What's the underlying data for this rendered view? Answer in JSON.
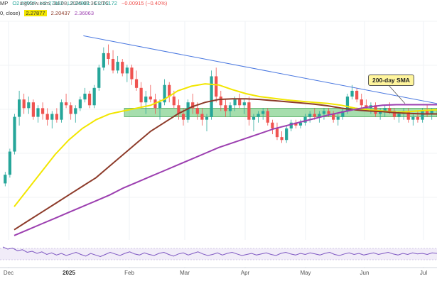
{
  "header": {
    "title_fragment": "ingView.com, Jul 08, 2025 07:36 UTC",
    "symbol_fragment": "MP",
    "open": "O2.27027",
    "high": "H2.27362",
    "low": "L2.24881",
    "close": "C2.26172",
    "change": "−0.00915 (−0.40%)",
    "sma_line_label": "0, close)",
    "sma_value_a": "2.27877",
    "sma_value_b": "2.20437",
    "sma_value_c": "2.36063"
  },
  "annotation": {
    "text": "200-day SMA"
  },
  "colors": {
    "up": "#26a69a",
    "down": "#ef5350",
    "sma_yellow": "#f2e600",
    "sma_brown": "#8d3b2a",
    "sma_purple": "#9c3fb0",
    "trendline_blue": "#4a78e0",
    "support_zone": "#5cc36a",
    "rsi_line": "#7e57c2"
  },
  "chart_data": {
    "type": "candlestick",
    "x_labels": [
      "Dec",
      "2025",
      "Feb",
      "Mar",
      "Apr",
      "May",
      "Jun",
      "Jul"
    ],
    "ohlc": [
      [
        1.0,
        1.2,
        0.95,
        1.15
      ],
      [
        1.15,
        1.6,
        1.1,
        1.55
      ],
      [
        1.55,
        2.2,
        1.5,
        2.15
      ],
      [
        2.15,
        2.6,
        2.0,
        2.45
      ],
      [
        2.45,
        2.55,
        2.2,
        2.3
      ],
      [
        2.3,
        2.5,
        2.2,
        2.4
      ],
      [
        2.4,
        2.45,
        2.1,
        2.15
      ],
      [
        2.15,
        2.35,
        2.05,
        2.3
      ],
      [
        2.3,
        2.4,
        2.1,
        2.2
      ],
      [
        2.2,
        2.3,
        2.0,
        2.1
      ],
      [
        2.1,
        2.25,
        1.95,
        2.2
      ],
      [
        2.2,
        2.3,
        2.05,
        2.1
      ],
      [
        2.1,
        2.45,
        2.05,
        2.4
      ],
      [
        2.4,
        2.55,
        2.3,
        2.35
      ],
      [
        2.35,
        2.4,
        2.1,
        2.2
      ],
      [
        2.2,
        2.35,
        2.05,
        2.3
      ],
      [
        2.3,
        2.5,
        2.25,
        2.45
      ],
      [
        2.45,
        2.65,
        2.4,
        2.55
      ],
      [
        2.55,
        2.6,
        2.3,
        2.35
      ],
      [
        2.35,
        2.7,
        2.3,
        2.65
      ],
      [
        2.65,
        3.05,
        2.6,
        3.0
      ],
      [
        3.0,
        3.35,
        2.95,
        3.25
      ],
      [
        3.25,
        3.4,
        3.05,
        3.15
      ],
      [
        3.15,
        3.3,
        2.9,
        2.95
      ],
      [
        2.95,
        3.2,
        2.9,
        3.1
      ],
      [
        3.1,
        3.15,
        2.85,
        2.9
      ],
      [
        2.9,
        3.05,
        2.75,
        3.0
      ],
      [
        3.0,
        3.05,
        2.7,
        2.8
      ],
      [
        2.8,
        2.95,
        2.6,
        2.65
      ],
      [
        2.65,
        2.75,
        2.3,
        2.4
      ],
      [
        2.4,
        2.6,
        2.2,
        2.5
      ],
      [
        2.5,
        2.7,
        2.4,
        2.45
      ],
      [
        2.45,
        2.55,
        2.2,
        2.3
      ],
      [
        2.3,
        2.45,
        2.1,
        2.4
      ],
      [
        2.4,
        2.8,
        2.35,
        2.7
      ],
      [
        2.7,
        2.75,
        2.4,
        2.5
      ],
      [
        2.5,
        2.6,
        2.3,
        2.35
      ],
      [
        2.35,
        2.45,
        2.1,
        2.2
      ],
      [
        2.2,
        2.3,
        2.0,
        2.1
      ],
      [
        2.1,
        2.45,
        2.05,
        2.4
      ],
      [
        2.4,
        2.55,
        2.2,
        2.3
      ],
      [
        2.3,
        2.4,
        2.1,
        2.2
      ],
      [
        2.2,
        2.3,
        2.0,
        2.1
      ],
      [
        2.1,
        2.2,
        1.9,
        2.15
      ],
      [
        2.15,
        2.95,
        2.1,
        2.85
      ],
      [
        2.85,
        3.0,
        2.4,
        2.5
      ],
      [
        2.5,
        2.6,
        2.25,
        2.35
      ],
      [
        2.35,
        2.45,
        2.15,
        2.25
      ],
      [
        2.25,
        2.4,
        2.15,
        2.35
      ],
      [
        2.35,
        2.5,
        2.25,
        2.45
      ],
      [
        2.45,
        2.55,
        2.3,
        2.35
      ],
      [
        2.35,
        2.45,
        2.2,
        2.4
      ],
      [
        2.4,
        2.5,
        2.0,
        2.1
      ],
      [
        2.1,
        2.2,
        1.9,
        2.15
      ],
      [
        2.15,
        2.25,
        2.05,
        2.2
      ],
      [
        2.2,
        2.3,
        2.1,
        2.25
      ],
      [
        2.25,
        2.3,
        2.0,
        2.05
      ],
      [
        2.05,
        2.1,
        1.85,
        1.95
      ],
      [
        1.95,
        2.05,
        1.75,
        1.8
      ],
      [
        1.8,
        1.9,
        1.7,
        1.75
      ],
      [
        1.75,
        2.0,
        1.7,
        1.95
      ],
      [
        1.95,
        2.1,
        1.9,
        2.05
      ],
      [
        2.05,
        2.1,
        1.95,
        2.0
      ],
      [
        2.0,
        2.1,
        1.95,
        2.05
      ],
      [
        2.05,
        2.2,
        2.0,
        2.15
      ],
      [
        2.15,
        2.25,
        2.05,
        2.2
      ],
      [
        2.2,
        2.3,
        2.1,
        2.15
      ],
      [
        2.15,
        2.25,
        2.05,
        2.2
      ],
      [
        2.2,
        2.3,
        2.1,
        2.25
      ],
      [
        2.25,
        2.3,
        2.15,
        2.2
      ],
      [
        2.2,
        2.25,
        2.05,
        2.1
      ],
      [
        2.1,
        2.2,
        2.0,
        2.15
      ],
      [
        2.15,
        2.3,
        2.1,
        2.25
      ],
      [
        2.25,
        2.55,
        2.2,
        2.5
      ],
      [
        2.5,
        2.7,
        2.45,
        2.6
      ],
      [
        2.6,
        2.65,
        2.4,
        2.45
      ],
      [
        2.45,
        2.55,
        2.3,
        2.35
      ],
      [
        2.35,
        2.45,
        2.25,
        2.3
      ],
      [
        2.3,
        2.4,
        2.2,
        2.35
      ],
      [
        2.35,
        2.4,
        2.15,
        2.2
      ],
      [
        2.2,
        2.3,
        2.1,
        2.25
      ],
      [
        2.25,
        2.35,
        2.15,
        2.3
      ],
      [
        2.3,
        2.4,
        2.2,
        2.25
      ],
      [
        2.25,
        2.3,
        2.1,
        2.15
      ],
      [
        2.15,
        2.25,
        2.05,
        2.2
      ],
      [
        2.2,
        2.3,
        2.1,
        2.25
      ],
      [
        2.25,
        2.3,
        2.05,
        2.1
      ],
      [
        2.1,
        2.2,
        2.0,
        2.15
      ],
      [
        2.15,
        2.25,
        2.05,
        2.1
      ],
      [
        2.1,
        2.3,
        2.05,
        2.25
      ],
      [
        2.25,
        2.35,
        2.15,
        2.2
      ],
      [
        2.2,
        2.3,
        2.1,
        2.27
      ]
    ],
    "series": [
      {
        "values": [
          0.6,
          0.9,
          1.2,
          1.5,
          1.75,
          1.95,
          2.1,
          2.2,
          2.25,
          2.3,
          2.35,
          2.45,
          2.6,
          2.68,
          2.72,
          2.7,
          2.62,
          2.55,
          2.5,
          2.47,
          2.44,
          2.42,
          2.4,
          2.38,
          2.35,
          2.3,
          2.27,
          2.25,
          2.23,
          2.24,
          2.26,
          2.27
        ]
      },
      {
        "values": [
          0.2,
          0.35,
          0.5,
          0.65,
          0.8,
          0.95,
          1.1,
          1.3,
          1.5,
          1.7,
          1.9,
          2.05,
          2.2,
          2.32,
          2.4,
          2.45,
          2.46,
          2.46,
          2.45,
          2.43,
          2.41,
          2.39,
          2.37,
          2.34,
          2.3,
          2.27,
          2.25,
          2.24,
          2.22,
          2.21,
          2.2,
          2.2
        ]
      },
      {
        "values": [
          0.1,
          0.2,
          0.3,
          0.4,
          0.5,
          0.6,
          0.7,
          0.8,
          0.92,
          1.02,
          1.12,
          1.22,
          1.32,
          1.42,
          1.52,
          1.62,
          1.7,
          1.78,
          1.86,
          1.94,
          2.0,
          2.06,
          2.12,
          2.18,
          2.23,
          2.28,
          2.32,
          2.35,
          2.36,
          2.36,
          2.36,
          2.36
        ]
      }
    ],
    "support_zone": [
      2.15,
      2.3
    ],
    "descending_trendline": {
      "from": [
        0,
        3.55
      ],
      "to": [
        94,
        2.35
      ]
    },
    "ascending_trendline": {
      "from": [
        37,
        1.15
      ],
      "to": [
        94,
        2.3
      ]
    },
    "y_range": [
      0.0,
      3.8
    ],
    "rsi": [
      62,
      58,
      60,
      55,
      57,
      52,
      54,
      50,
      53,
      48,
      51,
      47,
      50,
      46,
      49,
      52,
      48,
      45,
      50,
      47,
      44,
      48,
      52,
      49,
      46,
      50,
      53,
      49,
      47,
      51,
      48,
      46,
      50,
      52,
      48,
      45,
      49,
      51,
      47,
      50,
      53,
      49,
      46,
      48,
      51,
      47,
      50,
      52,
      49,
      46,
      48,
      50,
      47,
      49,
      51,
      48,
      46,
      50,
      52,
      49,
      47,
      50,
      48,
      51,
      49,
      47,
      50,
      52,
      48,
      46,
      49,
      51,
      48,
      50,
      47,
      49,
      51,
      48,
      50,
      52,
      49,
      47,
      50,
      48,
      51,
      49,
      50,
      48,
      51,
      50
    ],
    "grid": true
  }
}
